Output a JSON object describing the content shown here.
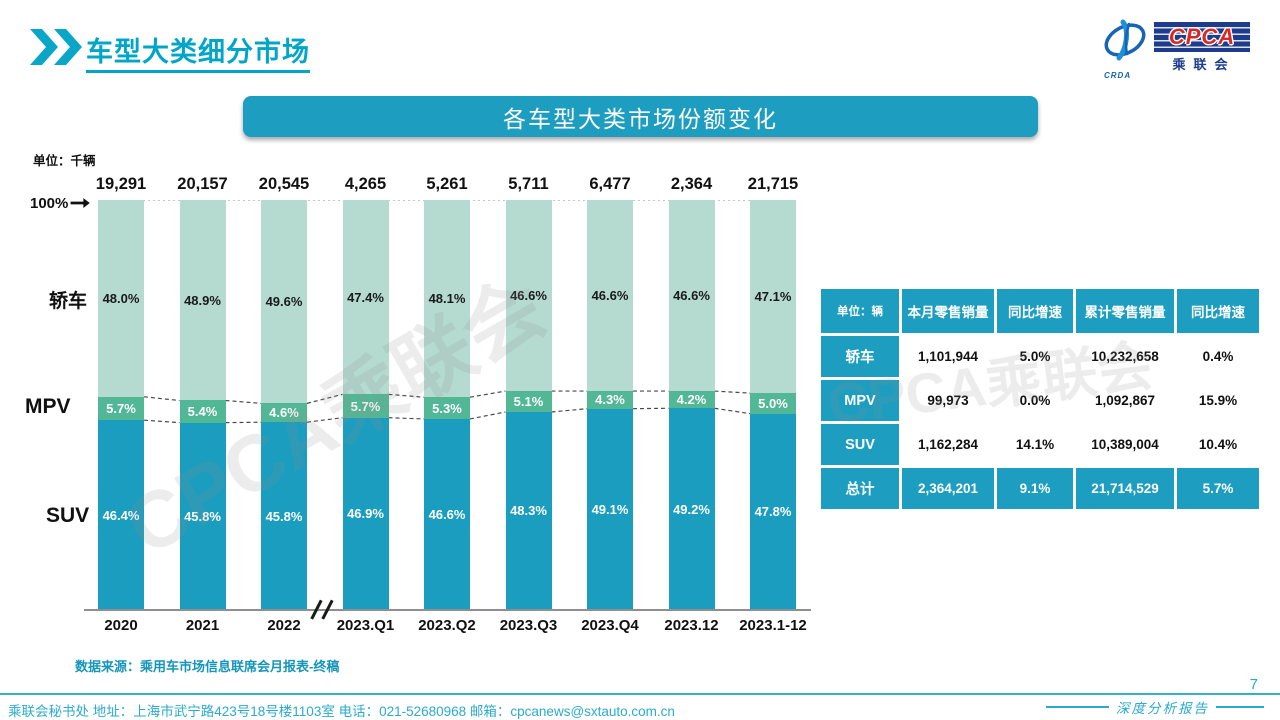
{
  "page": {
    "title": "车型大类细分市场",
    "page_number": "7",
    "report_label": "深度分析报告",
    "source_note": "数据来源：乘用车市场信息联席会月报表-终稿",
    "footer_contact": "乘联会秘书处   地址：上海市武宁路423号18号楼1103室  电话：021-52680968   邮箱：cpcanews@sxtauto.com.cn",
    "watermark": "CPCA乘联会"
  },
  "logo": {
    "wordmark": "CPCA",
    "emblem": "CRDA",
    "subtitle": "乘联会"
  },
  "banner": {
    "title": "各车型大类市场份额变化"
  },
  "chart_data": {
    "type": "bar",
    "subtype": "100%-stacked-column",
    "title": "各车型大类市场份额变化",
    "unit_label": "单位：千辆",
    "axis_label_100": "100%",
    "categories": [
      "2020",
      "2021",
      "2022",
      "2023.Q1",
      "2023.Q2",
      "2023.Q3",
      "2023.Q4",
      "2023.12",
      "2023.1-12"
    ],
    "totals": [
      "19,291",
      "20,157",
      "20,545",
      "4,265",
      "5,261",
      "5,711",
      "6,477",
      "2,364",
      "21,715"
    ],
    "series": [
      {
        "name": "轿车",
        "color": "#b5dacf",
        "label_color": "#1a1a1a",
        "values": [
          48.0,
          48.9,
          49.6,
          47.4,
          48.1,
          46.6,
          46.6,
          46.6,
          47.1
        ]
      },
      {
        "name": "MPV",
        "color": "#52b795",
        "label_color": "#ffffff",
        "values": [
          5.7,
          5.4,
          4.6,
          5.7,
          5.3,
          5.1,
          4.3,
          4.2,
          5.0
        ]
      },
      {
        "name": "SUV",
        "color": "#1b9dbf",
        "label_color": "#ffffff",
        "values": [
          46.4,
          45.8,
          45.8,
          46.9,
          46.6,
          48.3,
          49.1,
          49.2,
          47.8
        ]
      }
    ],
    "ylim": [
      0,
      100
    ],
    "grid": false,
    "axis_break_after_index": 2,
    "legend_position": "left-of-bars"
  },
  "table": {
    "unit_header": "单位：辆",
    "columns": [
      "本月零售销量",
      "同比增速",
      "累计零售销量",
      "同比增速"
    ],
    "rows": [
      {
        "label": "轿车",
        "values": [
          "1,101,944",
          "5.0%",
          "10,232,658",
          "0.4%"
        ],
        "highlight": false
      },
      {
        "label": "MPV",
        "values": [
          "99,973",
          "0.0%",
          "1,092,867",
          "15.9%"
        ],
        "highlight": false
      },
      {
        "label": "SUV",
        "values": [
          "1,162,284",
          "14.1%",
          "10,389,004",
          "10.4%"
        ],
        "highlight": false
      },
      {
        "label": "总计",
        "values": [
          "2,364,201",
          "9.1%",
          "21,714,529",
          "5.7%"
        ],
        "highlight": true
      }
    ]
  },
  "colors": {
    "accent_teal": "#1d9ec0",
    "title_teal": "#00a6c9",
    "sedan": "#b5dacf",
    "mpv": "#52b795",
    "suv": "#1b9dbf",
    "navy": "#1e3c8c",
    "logo_red": "#d82a23"
  }
}
